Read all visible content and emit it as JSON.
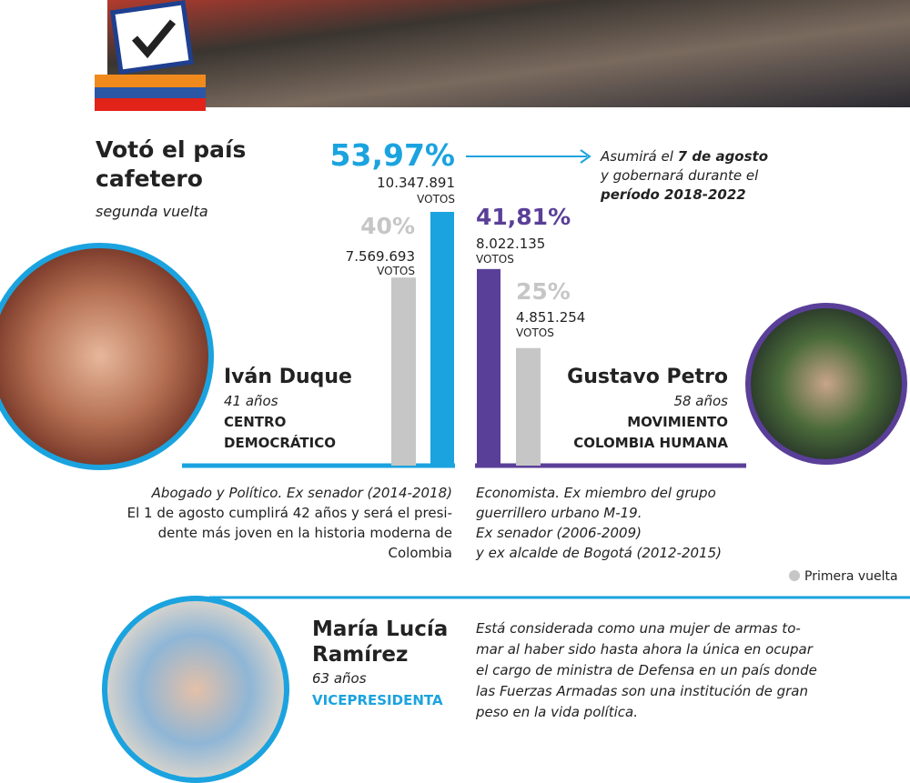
{
  "header": {
    "title": [
      "Votó el país",
      "cafetero"
    ],
    "subtitle": "segunda vuelta"
  },
  "note": {
    "lines": [
      [
        "Asumirá el ",
        "7 de agosto"
      ],
      [
        "y gobernará durante el"
      ],
      [
        "período 2018-2022"
      ]
    ]
  },
  "candidates": [
    {
      "name": "Iván Duque",
      "age": "41 años",
      "party": [
        "CENTRO",
        "DEMOCRÁTICO"
      ],
      "second_round": {
        "value": 53.97,
        "label": "53,97%",
        "votes": {
          "value": 10347891,
          "label": "10.347.891"
        },
        "unit": "VOTOS",
        "color": "#1ba3df"
      },
      "first_round": {
        "value": 40,
        "label": "40%",
        "votes": {
          "value": 7569693,
          "label": "7.569.693"
        },
        "unit": "VOTOS",
        "color": "#c6c6c6"
      },
      "bio": [
        "Abogado y Político. Ex senador (2014-2018)",
        "El 1 de agosto cumplirá 42 años y será el presi-",
        "dente más joven en la historia moderna de",
        "Colombia"
      ]
    },
    {
      "name": "Gustavo Petro",
      "age": "58 años",
      "party": [
        "MOVIMIENTO",
        "COLOMBIA HUMANA"
      ],
      "second_round": {
        "value": 41.81,
        "label": "41,81%",
        "votes": {
          "value": 8022135,
          "label": "8.022.135"
        },
        "unit": "VOTOS",
        "color": "#5a3f98"
      },
      "first_round": {
        "value": 25,
        "label": "25%",
        "votes": {
          "value": 4851254,
          "label": "4.851.254"
        },
        "unit": "VOTOS",
        "color": "#c6c6c6"
      },
      "bio": [
        "Economista. Ex miembro del grupo",
        "guerrillero urbano M-19.",
        "Ex senador (2006-2009)",
        "y ex alcalde de Bogotá (2012-2015)"
      ]
    }
  ],
  "legend": {
    "label": "Primera vuelta",
    "color": "#c6c6c6"
  },
  "vice": {
    "name": [
      "María Lucía",
      "Ramírez"
    ],
    "age": "63 años",
    "role": "VICEPRESIDENTA",
    "text": [
      "Está considerada como una mujer de armas to-",
      "mar al haber sido hasta ahora la única en ocupar",
      "el cargo de ministra de Defensa en un país donde",
      "las Fuerzas Armadas son una institución de gran",
      "peso en la vida política."
    ]
  }
}
